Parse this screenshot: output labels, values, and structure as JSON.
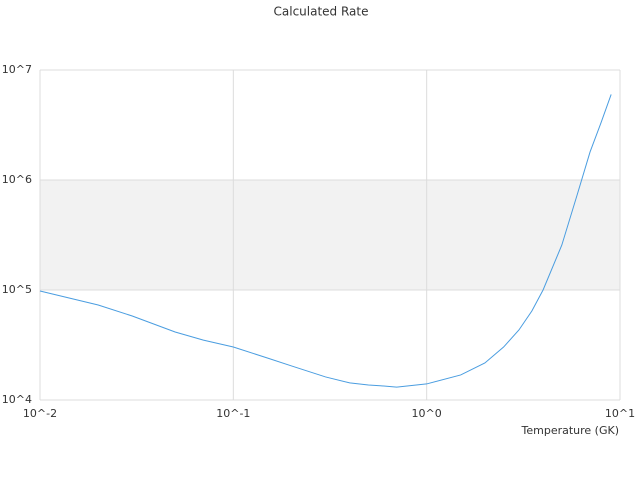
{
  "chart_data": {
    "type": "line",
    "title": "Calculated Rate",
    "x_label": "Temperature (GK)",
    "xscale": "log",
    "yscale": "log",
    "x": [
      0.01,
      0.02,
      0.03,
      0.05,
      0.07,
      0.1,
      0.15,
      0.2,
      0.3,
      0.4,
      0.5,
      0.6,
      0.7,
      1,
      1.5,
      2,
      2.5,
      3,
      3.5,
      4,
      5,
      6,
      7,
      8,
      9
    ],
    "series": [
      {
        "color": "#4a9de0",
        "values": [
          98000,
          73000,
          58000,
          41500,
          35000,
          30300,
          24100,
          20400,
          16200,
          14300,
          13700,
          13400,
          13100,
          14000,
          16900,
          21700,
          30300,
          43300,
          64400,
          100000,
          256000,
          731000,
          1800000,
          3360000,
          6000000
        ]
      }
    ],
    "xlim": [
      0.01,
      10
    ],
    "xticks": [
      {
        "value": 0.01,
        "label": "10^-2"
      },
      {
        "value": 0.1,
        "label": "10^-1"
      },
      {
        "value": 1,
        "label": "10^0"
      },
      {
        "value": 10,
        "label": "10^1"
      }
    ],
    "ylim": [
      10000,
      10000000
    ],
    "yticks": [
      {
        "value": 10000,
        "label": "10^4"
      },
      {
        "value": 100000,
        "label": "10^5"
      },
      {
        "value": 1000000,
        "label": "10^6"
      },
      {
        "value": 10000000,
        "label": "10^7"
      }
    ],
    "grid": true,
    "band_color": "#f2f2f2"
  }
}
